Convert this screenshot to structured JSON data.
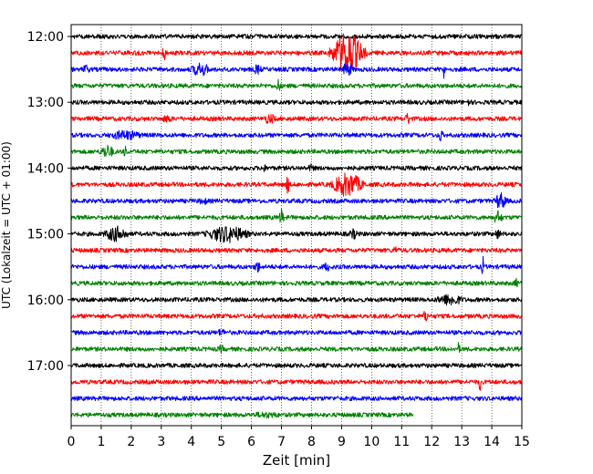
{
  "chart_data": {
    "type": "line",
    "title": "",
    "xlabel": "Zeit  [min]",
    "ylabel": "UTC (Lokalzeit = UTC + 01:00)",
    "xlim": [
      0,
      15
    ],
    "x_ticks": [
      0,
      1,
      2,
      3,
      4,
      5,
      6,
      7,
      8,
      9,
      10,
      11,
      12,
      13,
      14,
      15
    ],
    "y_ticks": [
      "12:00",
      "13:00",
      "14:00",
      "15:00",
      "16:00",
      "17:00"
    ],
    "grid": "vertical dotted",
    "rows_per_hour": 4,
    "trace_colors": [
      "#000000",
      "#ff0000",
      "#0000ff",
      "#008000"
    ],
    "traces": [
      {
        "time": "12:00",
        "color": "#000000",
        "end_min": 15,
        "events": []
      },
      {
        "time": "12:15",
        "color": "#ff0000",
        "end_min": 15,
        "events": [
          {
            "t": 3.1,
            "w": 0.15,
            "a": 10
          },
          {
            "t": 9.2,
            "w": 1.2,
            "a": 24
          }
        ]
      },
      {
        "time": "12:30",
        "color": "#0000ff",
        "end_min": 15,
        "events": [
          {
            "t": 0.5,
            "w": 0.3,
            "a": 6
          },
          {
            "t": 4.3,
            "w": 0.8,
            "a": 8
          },
          {
            "t": 6.2,
            "w": 0.4,
            "a": 6
          },
          {
            "t": 9.2,
            "w": 0.5,
            "a": 8
          },
          {
            "t": 12.4,
            "w": 0.1,
            "a": 12
          }
        ]
      },
      {
        "time": "12:45",
        "color": "#008000",
        "end_min": 15,
        "events": [
          {
            "t": 6.9,
            "w": 0.2,
            "a": 8
          }
        ]
      },
      {
        "time": "13:00",
        "color": "#000000",
        "end_min": 15,
        "events": [
          {
            "t": 13.2,
            "w": 0.1,
            "a": 8
          }
        ]
      },
      {
        "time": "13:15",
        "color": "#ff0000",
        "end_min": 15,
        "events": [
          {
            "t": 3.2,
            "w": 0.5,
            "a": 5
          },
          {
            "t": 6.6,
            "w": 0.6,
            "a": 6
          },
          {
            "t": 11.2,
            "w": 0.2,
            "a": 8
          }
        ]
      },
      {
        "time": "13:30",
        "color": "#0000ff",
        "end_min": 15,
        "events": [
          {
            "t": 1.8,
            "w": 1.5,
            "a": 6
          },
          {
            "t": 12.3,
            "w": 0.15,
            "a": 10
          }
        ]
      },
      {
        "time": "13:45",
        "color": "#008000",
        "end_min": 15,
        "events": [
          {
            "t": 1.2,
            "w": 0.6,
            "a": 8
          },
          {
            "t": 1.8,
            "w": 0.1,
            "a": 12
          }
        ]
      },
      {
        "time": "14:00",
        "color": "#000000",
        "end_min": 15,
        "events": [
          {
            "t": 6.4,
            "w": 0.2,
            "a": 6
          },
          {
            "t": 8.0,
            "w": 0.3,
            "a": 5
          }
        ]
      },
      {
        "time": "14:15",
        "color": "#ff0000",
        "end_min": 15,
        "events": [
          {
            "t": 7.2,
            "w": 0.2,
            "a": 10
          },
          {
            "t": 9.2,
            "w": 1.2,
            "a": 14
          }
        ]
      },
      {
        "time": "14:30",
        "color": "#0000ff",
        "end_min": 15,
        "events": [
          {
            "t": 4.4,
            "w": 0.4,
            "a": 5
          },
          {
            "t": 14.3,
            "w": 0.5,
            "a": 10
          }
        ]
      },
      {
        "time": "14:45",
        "color": "#008000",
        "end_min": 15,
        "events": [
          {
            "t": 7.0,
            "w": 0.2,
            "a": 10
          },
          {
            "t": 14.2,
            "w": 0.4,
            "a": 8
          }
        ]
      },
      {
        "time": "15:00",
        "color": "#000000",
        "end_min": 15,
        "events": [
          {
            "t": 1.5,
            "w": 1.0,
            "a": 9
          },
          {
            "t": 5.2,
            "w": 1.7,
            "a": 10
          },
          {
            "t": 9.4,
            "w": 0.4,
            "a": 6
          },
          {
            "t": 14.2,
            "w": 0.3,
            "a": 6
          }
        ]
      },
      {
        "time": "15:15",
        "color": "#ff0000",
        "end_min": 15,
        "events": [
          {
            "t": 10.8,
            "w": 0.3,
            "a": 5
          }
        ]
      },
      {
        "time": "15:30",
        "color": "#0000ff",
        "end_min": 15,
        "events": [
          {
            "t": 6.2,
            "w": 0.3,
            "a": 7
          },
          {
            "t": 8.5,
            "w": 0.3,
            "a": 6
          },
          {
            "t": 13.7,
            "w": 0.1,
            "a": 12
          }
        ]
      },
      {
        "time": "15:45",
        "color": "#008000",
        "end_min": 15,
        "events": [
          {
            "t": 14.8,
            "w": 0.2,
            "a": 6
          }
        ]
      },
      {
        "time": "16:00",
        "color": "#000000",
        "end_min": 15,
        "events": [
          {
            "t": 12.6,
            "w": 1.2,
            "a": 7
          }
        ]
      },
      {
        "time": "16:15",
        "color": "#ff0000",
        "end_min": 15,
        "events": [
          {
            "t": 11.8,
            "w": 0.2,
            "a": 8
          }
        ]
      },
      {
        "time": "16:30",
        "color": "#0000ff",
        "end_min": 15,
        "events": [
          {
            "t": 5.0,
            "w": 0.4,
            "a": 5
          }
        ]
      },
      {
        "time": "16:45",
        "color": "#008000",
        "end_min": 15,
        "events": [
          {
            "t": 5.0,
            "w": 0.3,
            "a": 5
          },
          {
            "t": 12.9,
            "w": 0.1,
            "a": 8
          }
        ]
      },
      {
        "time": "17:00",
        "color": "#000000",
        "end_min": 15,
        "events": []
      },
      {
        "time": "17:15",
        "color": "#ff0000",
        "end_min": 15,
        "events": [
          {
            "t": 13.6,
            "w": 0.1,
            "a": 12
          }
        ]
      },
      {
        "time": "17:30",
        "color": "#0000ff",
        "end_min": 15,
        "events": []
      },
      {
        "time": "17:45",
        "color": "#008000",
        "end_min": 11.4,
        "events": [
          {
            "t": 6.5,
            "w": 1.5,
            "a": 4
          }
        ]
      }
    ]
  }
}
